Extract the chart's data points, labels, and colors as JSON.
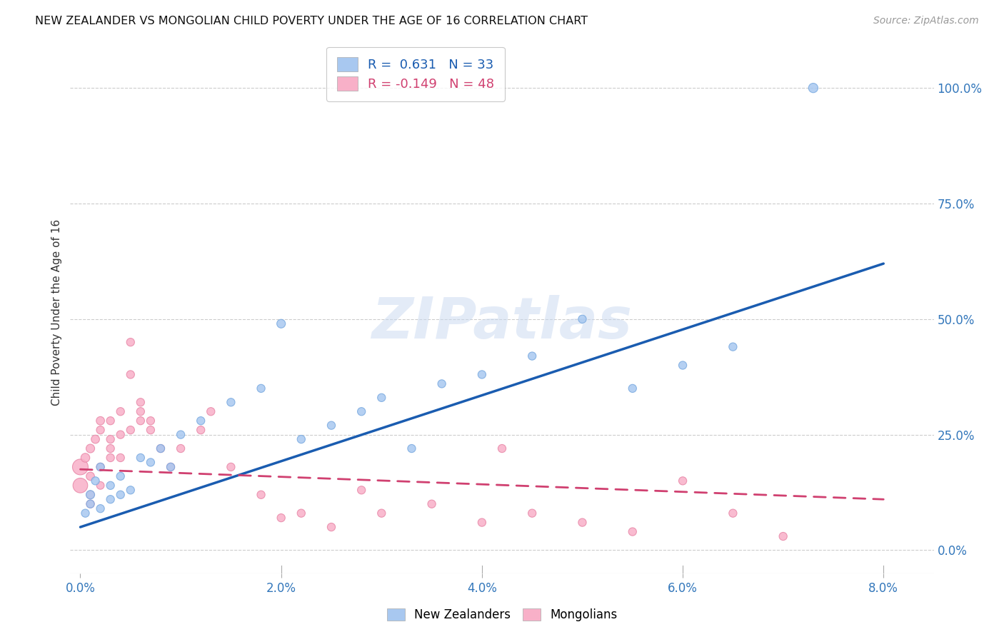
{
  "title": "NEW ZEALANDER VS MONGOLIAN CHILD POVERTY UNDER THE AGE OF 16 CORRELATION CHART",
  "source": "Source: ZipAtlas.com",
  "xlabel_ticks": [
    "0.0%",
    "2.0%",
    "4.0%",
    "6.0%",
    "8.0%"
  ],
  "xlabel_tick_vals": [
    0.0,
    0.02,
    0.04,
    0.06,
    0.08
  ],
  "ylabel": "Child Poverty Under the Age of 16",
  "ylabel_ticks": [
    "0.0%",
    "25.0%",
    "50.0%",
    "75.0%",
    "100.0%"
  ],
  "ylabel_tick_vals": [
    0.0,
    0.25,
    0.5,
    0.75,
    1.0
  ],
  "xlim": [
    -0.001,
    0.085
  ],
  "ylim": [
    -0.05,
    1.08
  ],
  "nz_color": "#A8C8F0",
  "nz_color_edge": "#7AAAE0",
  "mg_color": "#F8B0C8",
  "mg_color_edge": "#E888A8",
  "nz_R": 0.631,
  "nz_N": 33,
  "mg_R": -0.149,
  "mg_N": 48,
  "nz_line_color": "#1A5CB0",
  "mg_line_color": "#D04070",
  "watermark": "ZIPatlas",
  "nz_scatter_x": [
    0.0005,
    0.001,
    0.001,
    0.0015,
    0.002,
    0.002,
    0.003,
    0.003,
    0.004,
    0.004,
    0.005,
    0.006,
    0.007,
    0.008,
    0.009,
    0.01,
    0.012,
    0.015,
    0.018,
    0.02,
    0.022,
    0.025,
    0.028,
    0.03,
    0.033,
    0.036,
    0.04,
    0.045,
    0.05,
    0.055,
    0.06,
    0.065,
    0.073
  ],
  "nz_scatter_y": [
    0.08,
    0.12,
    0.1,
    0.15,
    0.09,
    0.18,
    0.11,
    0.14,
    0.16,
    0.12,
    0.13,
    0.2,
    0.19,
    0.22,
    0.18,
    0.25,
    0.28,
    0.32,
    0.35,
    0.49,
    0.24,
    0.27,
    0.3,
    0.33,
    0.22,
    0.36,
    0.38,
    0.42,
    0.5,
    0.35,
    0.4,
    0.44,
    1.0
  ],
  "nz_scatter_size": [
    65,
    75,
    65,
    65,
    65,
    65,
    65,
    65,
    65,
    65,
    65,
    65,
    65,
    65,
    65,
    65,
    65,
    65,
    65,
    75,
    65,
    65,
    65,
    65,
    65,
    65,
    65,
    65,
    65,
    65,
    65,
    65,
    90
  ],
  "mg_scatter_x": [
    0.0,
    0.0,
    0.0005,
    0.001,
    0.001,
    0.001,
    0.001,
    0.0015,
    0.002,
    0.002,
    0.002,
    0.002,
    0.003,
    0.003,
    0.003,
    0.003,
    0.004,
    0.004,
    0.004,
    0.005,
    0.005,
    0.005,
    0.006,
    0.006,
    0.006,
    0.007,
    0.007,
    0.008,
    0.009,
    0.01,
    0.012,
    0.013,
    0.015,
    0.018,
    0.02,
    0.022,
    0.025,
    0.028,
    0.03,
    0.035,
    0.04,
    0.042,
    0.045,
    0.05,
    0.055,
    0.06,
    0.065,
    0.07
  ],
  "mg_scatter_y": [
    0.18,
    0.14,
    0.2,
    0.22,
    0.16,
    0.12,
    0.1,
    0.24,
    0.26,
    0.28,
    0.18,
    0.14,
    0.22,
    0.24,
    0.2,
    0.28,
    0.3,
    0.25,
    0.2,
    0.45,
    0.38,
    0.26,
    0.3,
    0.28,
    0.32,
    0.28,
    0.26,
    0.22,
    0.18,
    0.22,
    0.26,
    0.3,
    0.18,
    0.12,
    0.07,
    0.08,
    0.05,
    0.13,
    0.08,
    0.1,
    0.06,
    0.22,
    0.08,
    0.06,
    0.04,
    0.15,
    0.08,
    0.03
  ],
  "mg_scatter_size": [
    250,
    220,
    80,
    75,
    70,
    65,
    65,
    70,
    65,
    70,
    65,
    60,
    65,
    65,
    65,
    65,
    65,
    65,
    65,
    65,
    65,
    65,
    65,
    65,
    65,
    65,
    65,
    65,
    65,
    65,
    65,
    65,
    65,
    65,
    65,
    65,
    65,
    65,
    65,
    65,
    65,
    65,
    65,
    65,
    65,
    65,
    65,
    65
  ],
  "grid_color": "#CCCCCC",
  "background_color": "#FFFFFF",
  "legend_nz_label": "New Zealanders",
  "legend_mg_label": "Mongolians",
  "nz_line_x0": 0.0,
  "nz_line_y0": 0.05,
  "nz_line_x1": 0.08,
  "nz_line_y1": 0.62,
  "mg_line_x0": 0.0,
  "mg_line_y0": 0.175,
  "mg_line_x1": 0.08,
  "mg_line_y1": 0.11
}
